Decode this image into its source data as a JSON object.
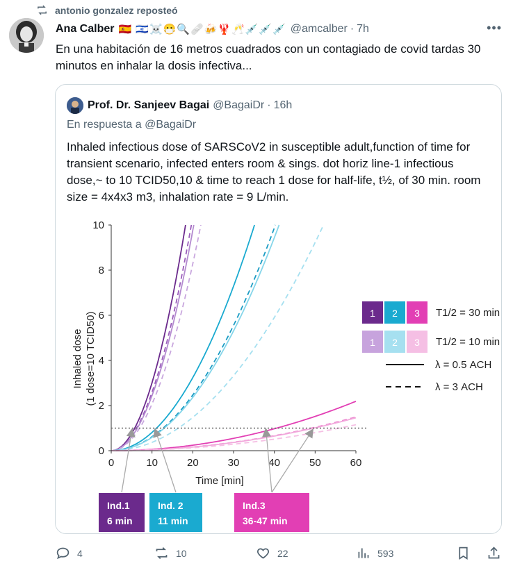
{
  "repost": {
    "text": "antonio gonzalez reposteó"
  },
  "tweet": {
    "author_name": "Ana Calber",
    "emojis": "🇪🇸 🇮🇱☠️😷🔍🩹🍻🦞🥂💉💉💉",
    "handle": "@amcalber",
    "sep": "·",
    "time": "7h",
    "text": "En una habitación de 16 metros cuadrados con un contagiado de covid tardas 30 minutos en inhalar la dosis infectiva..."
  },
  "quote": {
    "author_name": "Prof. Dr. Sanjeev Bagai",
    "handle": "@BagaiDr",
    "sep": "·",
    "time": "16h",
    "reply_to": "En respuesta a @BagaiDr",
    "text": "Inhaled infectious dose of SARSCoV2 in susceptible adult,function of time for transient scenario, infected enters room & sings. dot horiz line-1 infectious dose,~ to 10 TCID50,10 & time to reach 1 dose for half-life, t½, of 30 min. room size = 4x4x3 m3, inhalation rate = 9 L/min."
  },
  "chart_data": {
    "type": "line",
    "xlabel": "Time [min]",
    "ylabel_line1": "Inhaled dose",
    "ylabel_line2": "(1 dose=10 TCID50)",
    "xlim": [
      0,
      60
    ],
    "ylim": [
      0,
      10
    ],
    "xticks": [
      0,
      10,
      20,
      30,
      40,
      50,
      60
    ],
    "yticks": [
      0,
      2,
      4,
      6,
      8,
      10
    ],
    "threshold": 1,
    "series": [
      {
        "name": "Ind.1 T1/2=30 min, λ=0.5 ACH",
        "color": "#6b2a8c",
        "dash": false,
        "k": 0.0301
      },
      {
        "name": "Ind.1 T1/2=30 min, λ=3 ACH",
        "color": "#9b5dbb",
        "dash": true,
        "k": 0.0259
      },
      {
        "name": "Ind.1 T1/2=10 min, λ=0.5 ACH",
        "color": "#b48bd0",
        "dash": false,
        "k": 0.0244
      },
      {
        "name": "Ind.1 T1/2=10 min, λ=3 ACH",
        "color": "#c9a7de",
        "dash": true,
        "k": 0.0207
      },
      {
        "name": "Ind.2 T1/2=30 min, λ=0.5 ACH",
        "color": "#1aaad0",
        "dash": false,
        "k": 0.0081
      },
      {
        "name": "Ind.2 T1/2=30 min, λ=3 ACH",
        "color": "#1a9cc4",
        "dash": true,
        "k": 0.00617
      },
      {
        "name": "Ind.2 T1/2=10 min, λ=0.5 ACH",
        "color": "#86d6ea",
        "dash": false,
        "k": 0.0059
      },
      {
        "name": "Ind.2 T1/2=10 min, λ=3 ACH",
        "color": "#a6e0f0",
        "dash": true,
        "k": 0.00369
      },
      {
        "name": "Ind.3 T1/2=30 min, λ=0.5 ACH",
        "color": "#e23fb4",
        "dash": false,
        "k": 0.000608
      },
      {
        "name": "Ind.3 T1/2=30 min, λ=3 ACH",
        "color": "#ea7fcc",
        "dash": true,
        "k": 0.000415
      },
      {
        "name": "Ind.3 T1/2=10 min, λ=0.5 ACH",
        "color": "#f2a9dc",
        "dash": false,
        "k": 0.000405
      },
      {
        "name": "Ind.3 T1/2=10 min, λ=3 ACH",
        "color": "#f5bfe4",
        "dash": true,
        "k": 0.00032
      }
    ],
    "legend": {
      "boxes_dark": [
        "1",
        "2",
        "3"
      ],
      "boxes_light": [
        "1",
        "2",
        "3"
      ],
      "dark_colors": [
        "#6b2a8c",
        "#1aaad0",
        "#e23fb4"
      ],
      "light_colors": [
        "#c7a3dd",
        "#a6e0f0",
        "#f5bfe4"
      ],
      "t30_label": "T1/2 = 30 min",
      "t10_label": "T1/2 = 10 min",
      "solid_label": "λ = 0.5 ACH",
      "dashed_label": "λ = 3 ACH"
    },
    "individuals": [
      {
        "label1": "Ind.1",
        "label2": "6 min",
        "color": "#6b2a8c",
        "arrows_x": [
          5
        ]
      },
      {
        "label1": "Ind. 2",
        "label2": "11 min",
        "color": "#1aaad0",
        "arrows_x": [
          11
        ]
      },
      {
        "label1": "Ind.3",
        "label2": "36-47 min",
        "color": "#e23fb4",
        "arrows_x": [
          38,
          49
        ]
      }
    ]
  },
  "actions": {
    "replies": "4",
    "reposts": "10",
    "likes": "22",
    "views": "593"
  }
}
